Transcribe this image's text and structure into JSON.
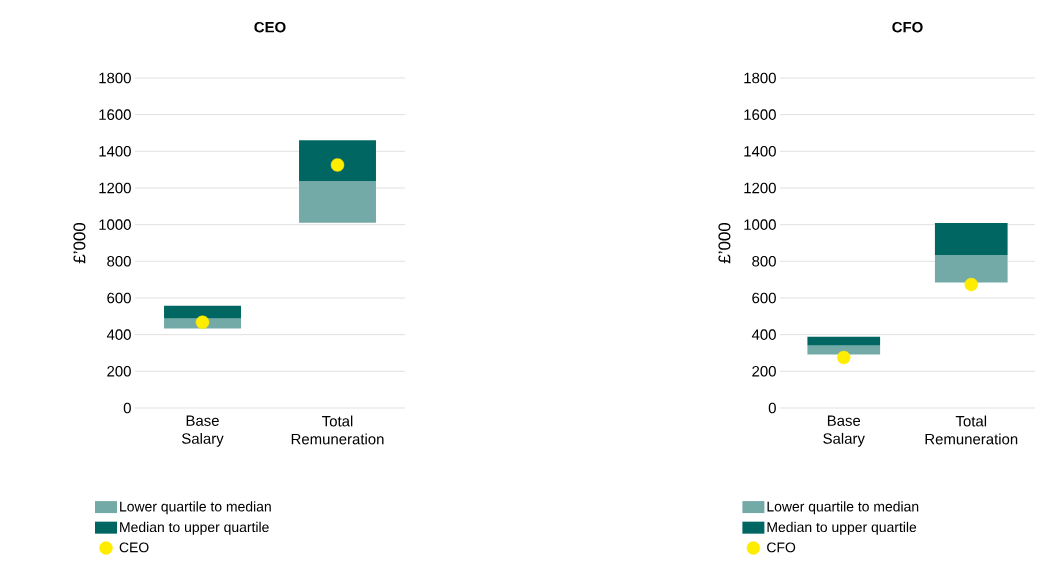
{
  "chart_data": [
    {
      "type": "bar",
      "title": "CEO",
      "ylabel": "£’000",
      "categories": [
        "Base Salary",
        "Total Remuneration"
      ],
      "ylim": [
        0,
        1800
      ],
      "yticks": [
        0,
        200,
        400,
        600,
        800,
        1000,
        1200,
        1400,
        1600,
        1800
      ],
      "grid": "y",
      "legend": "bottom",
      "series": [
        {
          "name": "Lower quartile to median",
          "color": "#73aaa8",
          "base": [
            434,
            1011
          ],
          "values": [
            54,
            227
          ]
        },
        {
          "name": "Median to upper quartile",
          "color": "#006661",
          "base": [
            488,
            1238
          ],
          "values": [
            69,
            223
          ]
        },
        {
          "name": "CEO",
          "type": "scatter",
          "marker": "circle",
          "color": "#ffed00",
          "x": [
            "Base Salary",
            "Total Remuneration"
          ],
          "values": [
            468,
            1326
          ]
        }
      ]
    },
    {
      "type": "bar",
      "title": "CFO",
      "ylabel": "£’000",
      "categories": [
        "Base Salary",
        "Total Remuneration"
      ],
      "ylim": [
        0,
        1800
      ],
      "yticks": [
        0,
        200,
        400,
        600,
        800,
        1000,
        1200,
        1400,
        1600,
        1800
      ],
      "grid": "y",
      "legend": "bottom",
      "series": [
        {
          "name": "Lower quartile to median",
          "color": "#73aaa8",
          "base": [
            292,
            684
          ],
          "values": [
            49,
            151
          ]
        },
        {
          "name": "Median to upper quartile",
          "color": "#006661",
          "base": [
            341,
            835
          ],
          "values": [
            47,
            174
          ]
        },
        {
          "name": "CFO",
          "type": "scatter",
          "marker": "circle",
          "color": "#ffed00",
          "x": [
            "Base Salary",
            "Total Remuneration"
          ],
          "values": [
            276,
            673
          ]
        }
      ]
    }
  ]
}
